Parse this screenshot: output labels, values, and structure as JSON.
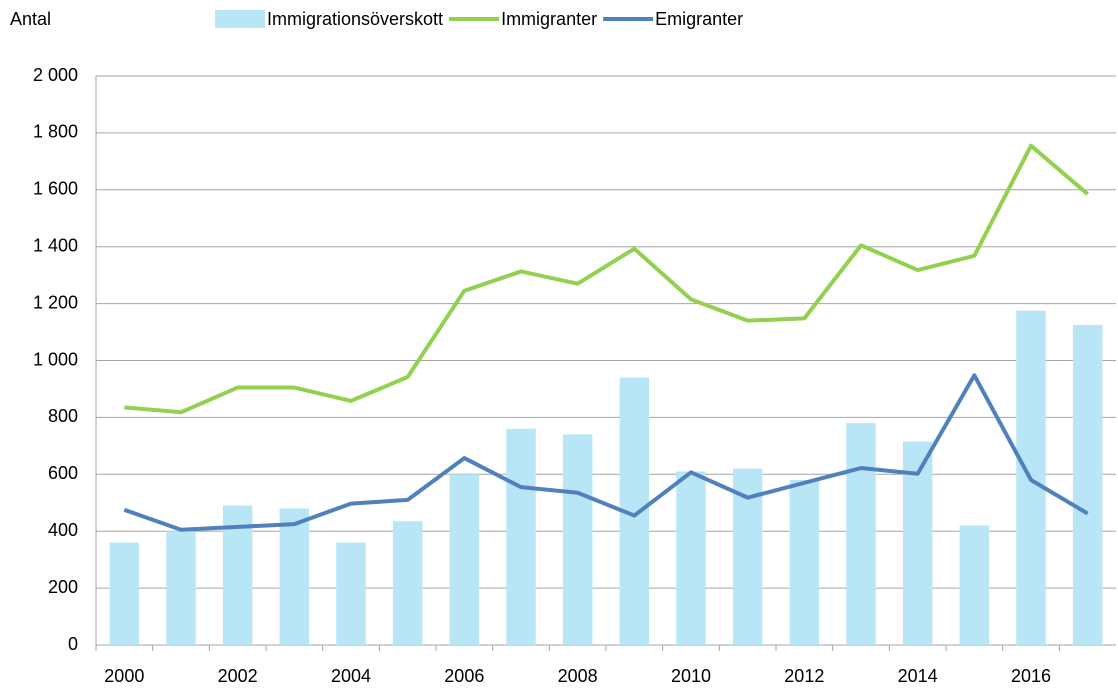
{
  "chart_data": {
    "type": "bar-line",
    "y_label": "Antal",
    "categories": [
      "2000",
      null,
      "2002",
      null,
      "2004",
      null,
      "2006",
      null,
      "2008",
      null,
      "2010",
      null,
      "2012",
      null,
      "2014",
      null,
      "2016",
      null
    ],
    "series": [
      {
        "name": "Immigrationsöverskott",
        "type": "bar",
        "color": "#b8e6f7",
        "values": [
          360,
          400,
          490,
          480,
          360,
          435,
          600,
          760,
          740,
          940,
          610,
          620,
          580,
          780,
          715,
          420,
          1175,
          1125
        ]
      },
      {
        "name": "Immigranter",
        "type": "line",
        "color": "#92d050",
        "values": [
          835,
          818,
          905,
          905,
          858,
          942,
          1245,
          1313,
          1270,
          1393,
          1215,
          1140,
          1148,
          1405,
          1318,
          1368,
          1755,
          1585
        ]
      },
      {
        "name": "Emigranter",
        "type": "line",
        "color": "#4f81bd",
        "values": [
          475,
          405,
          415,
          425,
          497,
          510,
          657,
          555,
          535,
          455,
          607,
          518,
          570,
          622,
          602,
          948,
          580,
          462
        ]
      }
    ],
    "ylim": [
      0,
      2000
    ],
    "yticks": [
      0,
      200,
      400,
      600,
      800,
      {
        "value": 1000,
        "label": "1 000"
      },
      {
        "value": 1200,
        "label": "1 200"
      },
      {
        "value": 1400,
        "label": "1 400"
      },
      {
        "value": 1600,
        "label": "1 600"
      },
      {
        "value": 1800,
        "label": "1 800"
      },
      {
        "value": 2000,
        "label": "2 000"
      }
    ],
    "grid": true,
    "legend": "top"
  }
}
